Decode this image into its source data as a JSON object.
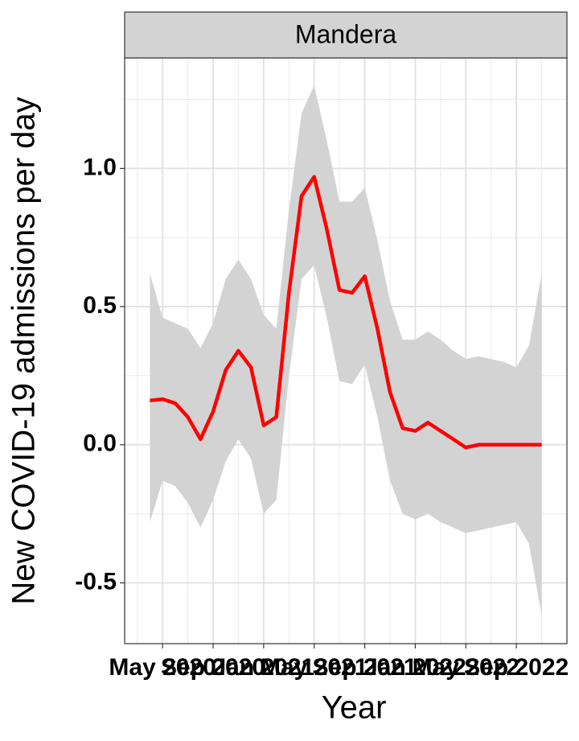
{
  "chart_data": {
    "type": "line",
    "facet": "Mandera",
    "xlabel": "Year",
    "ylabel": "New COVID-19 admissions per day",
    "color": "#ff0000",
    "ribbon_color": "#d3d3d3",
    "grid": true,
    "xlim": [
      "2020-02",
      "2023-01"
    ],
    "ylim": [
      -0.72,
      1.4
    ],
    "xticks": [
      {
        "value": "2020-05",
        "label": "May 2020"
      },
      {
        "value": "2020-09",
        "label": "Sep 2020"
      },
      {
        "value": "2021-01",
        "label": "Jan 2021"
      },
      {
        "value": "2021-05",
        "label": "May 2021"
      },
      {
        "value": "2021-09",
        "label": "Sep 2021"
      },
      {
        "value": "2022-01",
        "label": "Jan 2022"
      },
      {
        "value": "2022-05",
        "label": "May 2022"
      },
      {
        "value": "2022-09",
        "label": "Sep 2022"
      }
    ],
    "yticks": [
      -0.5,
      {
        "value": 0,
        "label": "0.0"
      },
      0.5,
      {
        "value": 1,
        "label": "1.0"
      }
    ],
    "x": [
      "2020-04",
      "2020-05",
      "2020-06",
      "2020-07",
      "2020-08",
      "2020-09",
      "2020-10",
      "2020-11",
      "2020-12",
      "2021-01",
      "2021-02",
      "2021-03",
      "2021-04",
      "2021-05",
      "2021-06",
      "2021-07",
      "2021-08",
      "2021-09",
      "2021-10",
      "2021-11",
      "2021-12",
      "2022-01",
      "2022-02",
      "2022-03",
      "2022-04",
      "2022-05",
      "2022-06",
      "2022-07",
      "2022-08",
      "2022-09",
      "2022-10",
      "2022-11"
    ],
    "values": [
      0.16,
      0.165,
      0.15,
      0.1,
      0.02,
      0.12,
      0.27,
      0.34,
      0.28,
      0.07,
      0.1,
      0.55,
      0.9,
      0.97,
      0.78,
      0.56,
      0.55,
      0.61,
      0.42,
      0.19,
      0.06,
      0.05,
      0.08,
      0.05,
      0.02,
      -0.01,
      0,
      0,
      0,
      0,
      0,
      0
    ],
    "lower": [
      -0.28,
      -0.13,
      -0.15,
      -0.21,
      -0.3,
      -0.2,
      -0.06,
      0.02,
      -0.05,
      -0.25,
      -0.2,
      0.25,
      0.6,
      0.65,
      0.46,
      0.23,
      0.22,
      0.29,
      0.1,
      -0.13,
      -0.25,
      -0.27,
      -0.25,
      -0.28,
      -0.3,
      -0.32,
      -0.31,
      -0.3,
      -0.29,
      -0.28,
      -0.36,
      -0.62
    ],
    "upper": [
      0.62,
      0.46,
      0.44,
      0.42,
      0.35,
      0.44,
      0.6,
      0.67,
      0.6,
      0.47,
      0.42,
      0.85,
      1.2,
      1.3,
      1.1,
      0.88,
      0.88,
      0.93,
      0.74,
      0.52,
      0.38,
      0.38,
      0.41,
      0.38,
      0.34,
      0.31,
      0.32,
      0.31,
      0.3,
      0.28,
      0.36,
      0.62
    ]
  }
}
